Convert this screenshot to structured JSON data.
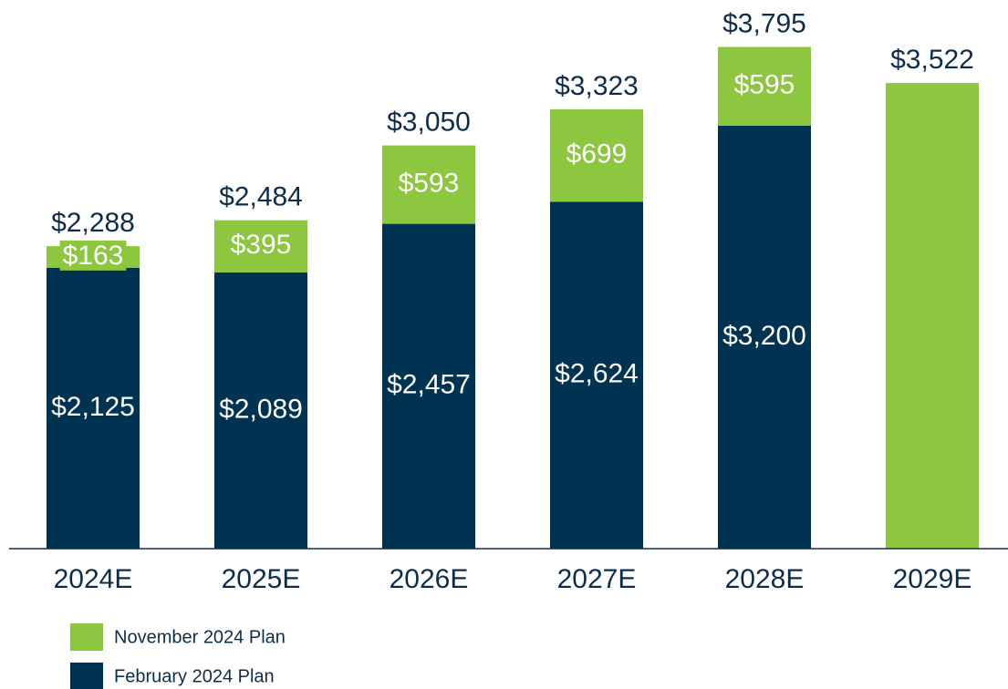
{
  "chart_data": {
    "type": "stacked-bar",
    "categories": [
      "2024E",
      "2025E",
      "2026E",
      "2027E",
      "2028E",
      "2029E"
    ],
    "series": [
      {
        "name": "February 2024 Plan",
        "color": "#003352",
        "values": [
          2125,
          2089,
          2457,
          2624,
          3200,
          null
        ],
        "value_labels": [
          "$2,125",
          "$2,089",
          "$2,457",
          "$2,624",
          "$3,200",
          null
        ]
      },
      {
        "name": "November 2024 Plan",
        "color": "#8dc63f",
        "values": [
          163,
          395,
          593,
          699,
          595,
          3522
        ],
        "value_labels": [
          "$163",
          "$395",
          "$593",
          "$699",
          "$595",
          null
        ]
      }
    ],
    "totals": [
      2288,
      2484,
      3050,
      3323,
      3795,
      3522
    ],
    "total_labels": [
      "$2,288",
      "$2,484",
      "$3,050",
      "$3,323",
      "$3,795",
      "$3,522"
    ],
    "ylim": [
      0,
      4150
    ]
  }
}
